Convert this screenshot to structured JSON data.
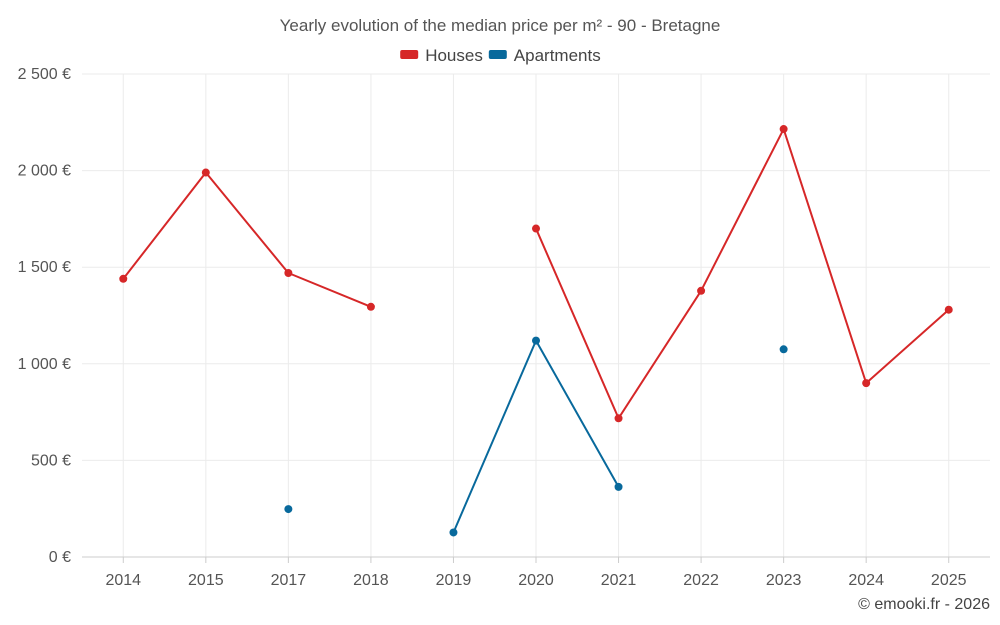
{
  "chart_data": {
    "type": "line",
    "title": "Yearly evolution of the median price per m² - 90 - Bretagne",
    "categories": [
      "2014",
      "2015",
      "2017",
      "2018",
      "2019",
      "2020",
      "2021",
      "2022",
      "2023",
      "2024",
      "2025"
    ],
    "series": [
      {
        "name": "Houses",
        "color": "#d62728",
        "values": [
          1440,
          1990,
          1470,
          1295,
          null,
          1700,
          718,
          1378,
          2215,
          900,
          1280
        ]
      },
      {
        "name": "Apartments",
        "color": "#08699c",
        "values": [
          null,
          null,
          248,
          null,
          127,
          1120,
          363,
          null,
          1075,
          null,
          null
        ]
      }
    ],
    "ylim": [
      0,
      2500
    ],
    "yticks": [
      0,
      500,
      1000,
      1500,
      2000,
      2500
    ],
    "ytick_labels": [
      "0 €",
      "500 €",
      "1 000 €",
      "1 500 €",
      "2 000 €",
      "2 500 €"
    ],
    "xlabel": "",
    "ylabel": "",
    "legend_position": "top-center",
    "grid": true
  },
  "credit": "© emooki.fr - 2026"
}
